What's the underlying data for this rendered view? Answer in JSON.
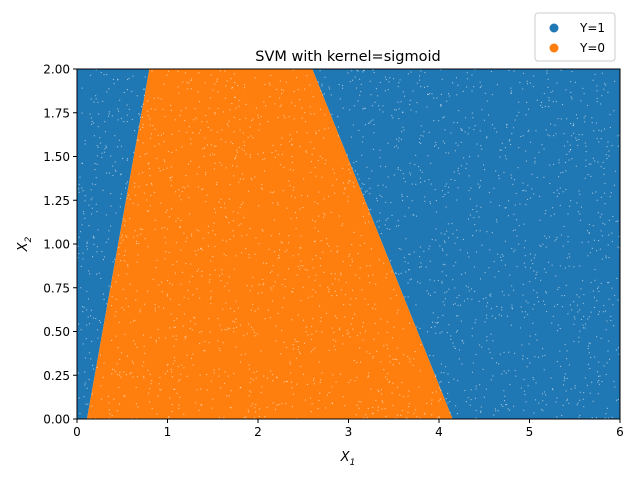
{
  "chart_data": {
    "type": "scatter",
    "title": "SVM with kernel=sigmoid",
    "xlabel": "X",
    "xlabel_sub": "1",
    "ylabel": "X",
    "ylabel_sub": "2",
    "xlim": [
      0,
      6
    ],
    "ylim": [
      0,
      2
    ],
    "x_ticks": [
      0,
      1,
      2,
      3,
      4,
      5,
      6
    ],
    "x_tick_labels": [
      "0",
      "1",
      "2",
      "3",
      "4",
      "5",
      "6"
    ],
    "y_ticks": [
      0,
      0.25,
      0.5,
      0.75,
      1.0,
      1.25,
      1.5,
      1.75,
      2.0
    ],
    "y_tick_labels": [
      "0.00",
      "0.25",
      "0.50",
      "0.75",
      "1.00",
      "1.25",
      "1.50",
      "1.75",
      "2.00"
    ],
    "grid": false,
    "legend_position": "top-right (outside axes)",
    "series": [
      {
        "name": "Y=1",
        "color": "#1f77b4"
      },
      {
        "name": "Y=0",
        "color": "#ff7f0e"
      }
    ],
    "decision_region_Y0": {
      "description": "points with X1 between left and right boundary lines are classified Y=0",
      "left_boundary": [
        [
          0.11,
          0.0
        ],
        [
          0.8,
          2.0
        ]
      ],
      "right_boundary": [
        [
          4.15,
          0.0
        ],
        [
          2.6,
          2.0
        ]
      ]
    }
  }
}
